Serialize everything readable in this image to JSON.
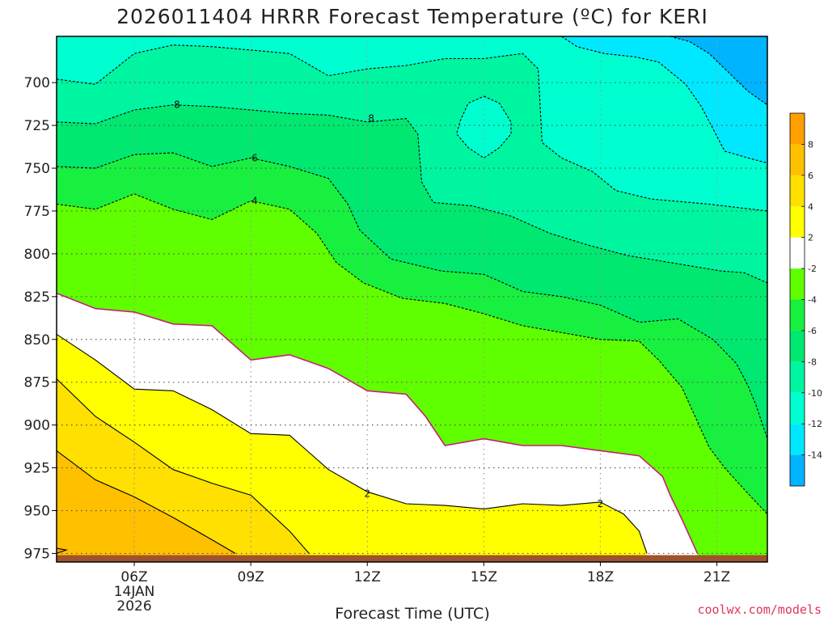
{
  "title": "2026011404 HRRR Forecast Temperature (ºC) for KERI",
  "credit": "coolwx.com/models",
  "chart_data": {
    "type": "heatmap",
    "title": "2026011404 HRRR Forecast Temperature (ºC) for KERI",
    "xlabel": "Forecast Time (UTC)",
    "ylabel": "",
    "xlim": [
      4,
      22.3
    ],
    "ylim": [
      980,
      673
    ],
    "x_ticks": [
      {
        "value": 6,
        "label": "06Z",
        "sublabels": [
          "14JAN",
          "2026"
        ]
      },
      {
        "value": 9,
        "label": "09Z",
        "sublabels": []
      },
      {
        "value": 12,
        "label": "12Z",
        "sublabels": []
      },
      {
        "value": 15,
        "label": "15Z",
        "sublabels": []
      },
      {
        "value": 18,
        "label": "18Z",
        "sublabels": []
      },
      {
        "value": 21,
        "label": "21Z",
        "sublabels": []
      }
    ],
    "y_ticks": [
      700,
      725,
      750,
      775,
      800,
      825,
      850,
      875,
      900,
      925,
      950,
      975
    ],
    "grid": true,
    "ground_level_hPa": 976,
    "ground_color": "#a0522d",
    "colorbar": {
      "bins": [
        {
          "min": -16,
          "max": -14,
          "color": "#00b4ff"
        },
        {
          "min": -14,
          "max": -12,
          "color": "#00e8ff"
        },
        {
          "min": -12,
          "max": -10,
          "color": "#00ffd0"
        },
        {
          "min": -10,
          "max": -8,
          "color": "#00f5a0"
        },
        {
          "min": -8,
          "max": -6,
          "color": "#00e870"
        },
        {
          "min": -6,
          "max": -4,
          "color": "#18f040"
        },
        {
          "min": -4,
          "max": -2,
          "color": "#60ff00"
        },
        {
          "min": -2,
          "max": 2,
          "color": "#ffffff"
        },
        {
          "min": 2,
          "max": 4,
          "color": "#ffff00"
        },
        {
          "min": 4,
          "max": 6,
          "color": "#ffe000"
        },
        {
          "min": 6,
          "max": 8,
          "color": "#ffc000"
        },
        {
          "min": 8,
          "max": 10,
          "color": "#ffa000"
        }
      ],
      "tick_labels": [
        "-14",
        "-12",
        "-10",
        "-8",
        "-6",
        "-4",
        "-2",
        "2",
        "4",
        "6",
        "8"
      ]
    },
    "freezing_line_color": "#cc1a7a",
    "isotherms": [
      {
        "temp": -16,
        "color": "#00c8ff",
        "points": [
          [
            4,
            673
          ],
          [
            22.3,
            673
          ],
          [
            22.3,
            673
          ],
          [
            4,
            673
          ]
        ],
        "closed": true
      },
      {
        "temp": -14,
        "points": [
          [
            19.8,
            673
          ],
          [
            20.3,
            676
          ],
          [
            20.8,
            683
          ],
          [
            21.3,
            694
          ],
          [
            21.8,
            705
          ],
          [
            22.3,
            713
          ]
        ]
      },
      {
        "temp": -12,
        "points": [
          [
            17.0,
            673
          ],
          [
            17.4,
            679
          ],
          [
            18.1,
            683
          ],
          [
            18.9,
            685
          ],
          [
            19.5,
            688
          ],
          [
            20.2,
            701
          ],
          [
            20.6,
            714
          ],
          [
            20.9,
            727
          ],
          [
            21.2,
            740
          ],
          [
            21.8,
            744
          ],
          [
            22.3,
            747
          ]
        ]
      },
      {
        "temp": -10,
        "points": [
          [
            4,
            698
          ],
          [
            5,
            701
          ],
          [
            6,
            683
          ],
          [
            7,
            678
          ],
          [
            8,
            679
          ],
          [
            9,
            681
          ],
          [
            10,
            683
          ],
          [
            11,
            696
          ],
          [
            12,
            692
          ],
          [
            13,
            690
          ],
          [
            14,
            686
          ],
          [
            15,
            686
          ],
          [
            16,
            683
          ],
          [
            16.4,
            692
          ],
          [
            16.5,
            735
          ],
          [
            17.0,
            744
          ],
          [
            17.8,
            752
          ],
          [
            18.4,
            763
          ],
          [
            19.3,
            768
          ],
          [
            20.8,
            771
          ],
          [
            22.3,
            775
          ]
        ]
      },
      {
        "temp": -10,
        "points": [
          [
            15.0,
            708
          ],
          [
            15.4,
            712
          ],
          [
            15.7,
            723
          ],
          [
            15.7,
            730
          ],
          [
            15.4,
            738
          ],
          [
            15.0,
            744
          ],
          [
            14.6,
            738
          ],
          [
            14.3,
            730
          ],
          [
            14.4,
            722
          ],
          [
            14.6,
            712
          ]
        ],
        "closed": true
      },
      {
        "temp": -8,
        "label_at": [
          [
            7.1,
            713
          ],
          [
            12.1,
            721
          ]
        ],
        "points": [
          [
            4,
            723
          ],
          [
            5,
            724
          ],
          [
            6,
            716
          ],
          [
            7,
            713
          ],
          [
            8,
            714
          ],
          [
            9,
            716
          ],
          [
            10,
            718
          ],
          [
            11,
            719
          ],
          [
            12,
            723
          ],
          [
            13,
            721
          ],
          [
            13.3,
            730
          ],
          [
            13.4,
            758
          ],
          [
            13.7,
            770
          ],
          [
            14.7,
            772
          ],
          [
            15.7,
            778
          ],
          [
            16.7,
            788
          ],
          [
            17.7,
            795
          ],
          [
            18.7,
            801
          ],
          [
            20.3,
            807
          ],
          [
            21.1,
            810
          ],
          [
            21.7,
            811
          ],
          [
            22.3,
            817
          ]
        ]
      },
      {
        "temp": -6,
        "label_at": [
          [
            9.1,
            744
          ]
        ],
        "points": [
          [
            4,
            749
          ],
          [
            5,
            750
          ],
          [
            6,
            742
          ],
          [
            7,
            741
          ],
          [
            8,
            749
          ],
          [
            9,
            744
          ],
          [
            10,
            749
          ],
          [
            11,
            756
          ],
          [
            11.5,
            771
          ],
          [
            11.8,
            786
          ],
          [
            12.6,
            803
          ],
          [
            13.9,
            810
          ],
          [
            15.0,
            812
          ],
          [
            16.0,
            822
          ],
          [
            17.0,
            825
          ],
          [
            18.0,
            830
          ],
          [
            19.0,
            840
          ],
          [
            20.0,
            838
          ],
          [
            20.9,
            850
          ],
          [
            21.5,
            864
          ],
          [
            21.8,
            877
          ],
          [
            22.0,
            888
          ],
          [
            22.3,
            908
          ]
        ]
      },
      {
        "temp": -4,
        "label_at": [
          [
            9.1,
            769
          ]
        ],
        "points": [
          [
            4,
            771
          ],
          [
            5,
            774
          ],
          [
            6,
            765
          ],
          [
            7,
            774
          ],
          [
            8,
            780
          ],
          [
            9,
            769
          ],
          [
            10,
            774
          ],
          [
            10.7,
            788
          ],
          [
            11.2,
            805
          ],
          [
            11.9,
            817
          ],
          [
            12.9,
            826
          ],
          [
            14.0,
            829
          ],
          [
            15.0,
            835
          ],
          [
            16.0,
            842
          ],
          [
            17.0,
            846
          ],
          [
            18.0,
            850
          ],
          [
            19.0,
            851
          ],
          [
            19.5,
            862
          ],
          [
            20.1,
            878
          ],
          [
            20.6,
            903
          ],
          [
            20.8,
            913
          ],
          [
            21.2,
            925
          ],
          [
            21.8,
            940
          ],
          [
            22.3,
            952
          ]
        ]
      },
      {
        "temp": 0,
        "freezing": true,
        "points": [
          [
            4,
            823
          ],
          [
            5,
            832
          ],
          [
            6,
            834
          ],
          [
            7,
            841
          ],
          [
            8,
            842
          ],
          [
            9,
            862
          ],
          [
            10,
            859
          ],
          [
            11,
            867
          ],
          [
            12,
            880
          ],
          [
            13,
            882
          ],
          [
            13.5,
            895
          ],
          [
            14.0,
            912
          ],
          [
            15.0,
            908
          ],
          [
            16.0,
            912
          ],
          [
            17.0,
            912
          ],
          [
            18.0,
            915
          ],
          [
            19.0,
            918
          ],
          [
            19.6,
            930
          ],
          [
            19.8,
            941
          ],
          [
            20.1,
            955
          ],
          [
            20.5,
            975
          ]
        ]
      },
      {
        "temp": 2,
        "label_at": [
          [
            12.0,
            940
          ],
          [
            18.0,
            946
          ]
        ],
        "points": [
          [
            4,
            847
          ],
          [
            5,
            862
          ],
          [
            6,
            879
          ],
          [
            7,
            880
          ],
          [
            8,
            891
          ],
          [
            9,
            905
          ],
          [
            10,
            906
          ],
          [
            11,
            926
          ],
          [
            12,
            939
          ],
          [
            13,
            946
          ],
          [
            14,
            947
          ],
          [
            15,
            949
          ],
          [
            16,
            946
          ],
          [
            17,
            947
          ],
          [
            18,
            945
          ],
          [
            18.6,
            952
          ],
          [
            19.0,
            962
          ],
          [
            19.2,
            975
          ]
        ]
      },
      {
        "temp": 4,
        "points": [
          [
            4,
            873
          ],
          [
            5,
            895
          ],
          [
            6,
            910
          ],
          [
            7,
            926
          ],
          [
            8,
            934
          ],
          [
            9,
            941
          ],
          [
            10,
            962
          ],
          [
            10.5,
            975
          ]
        ]
      },
      {
        "temp": 6,
        "points": [
          [
            4,
            915
          ],
          [
            5,
            932
          ],
          [
            6,
            942
          ],
          [
            7,
            954
          ],
          [
            8,
            967
          ],
          [
            8.6,
            975
          ]
        ]
      },
      {
        "temp": 8,
        "points": [
          [
            4,
            972
          ],
          [
            4.25,
            973
          ],
          [
            4,
            975
          ]
        ]
      }
    ]
  }
}
